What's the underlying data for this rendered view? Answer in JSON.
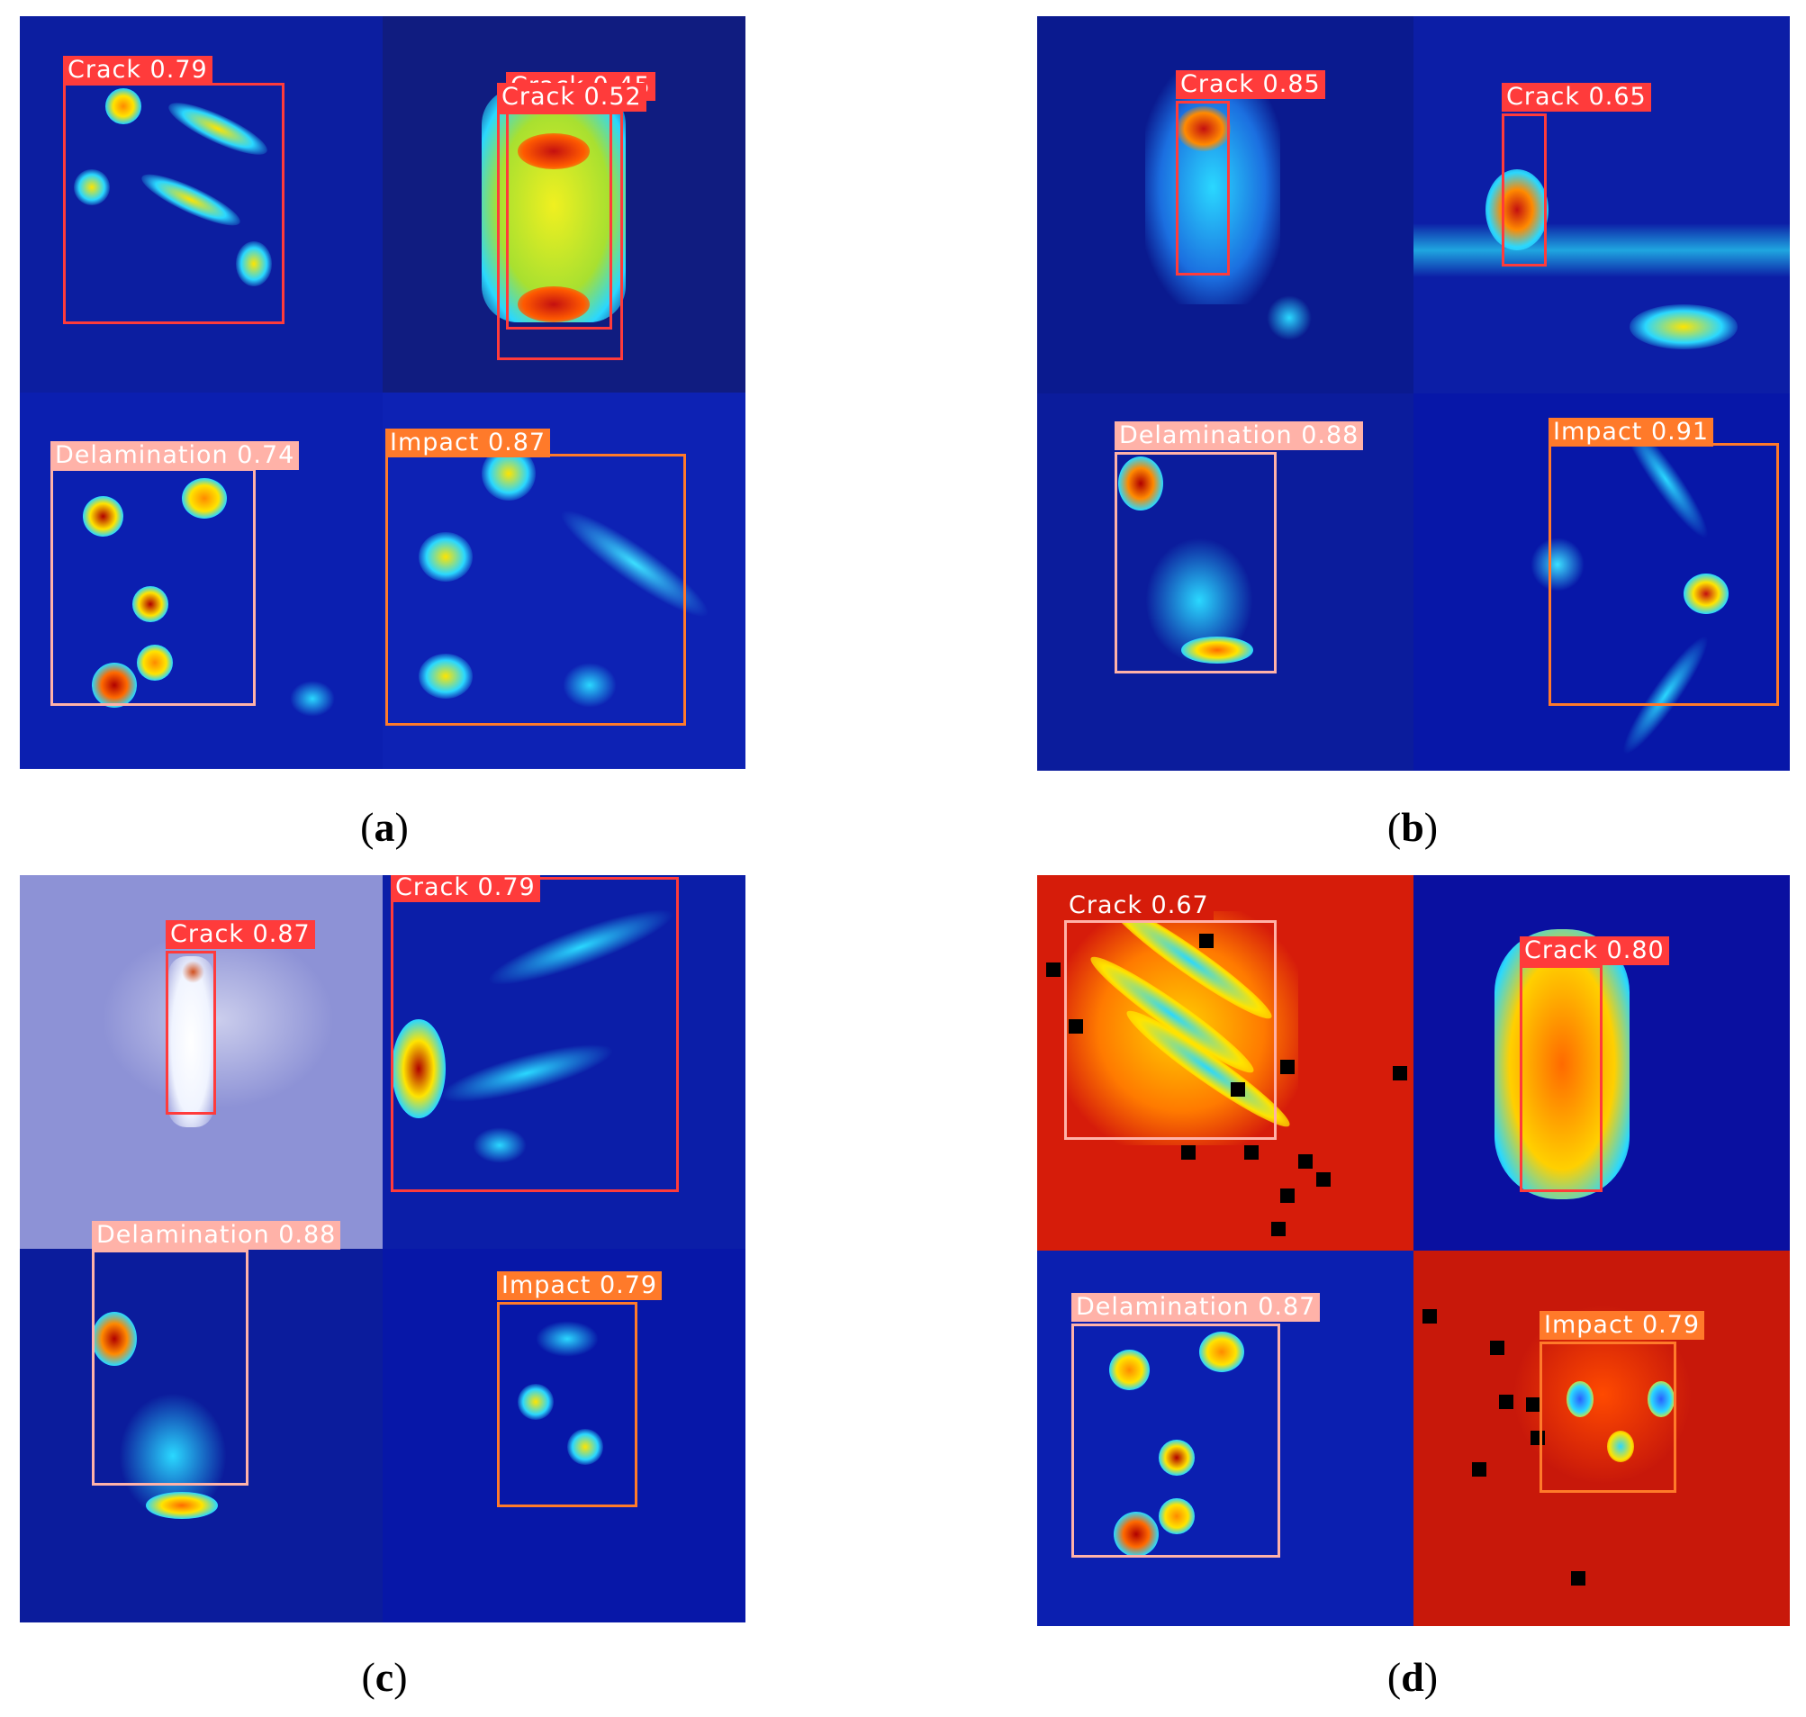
{
  "captions": {
    "a": "a",
    "b": "b",
    "c": "c",
    "d": "d"
  },
  "panels": {
    "a": {
      "detections": [
        {
          "label": "Crack 0.79",
          "class": "Crack"
        },
        {
          "label": "Crack 0.45",
          "class": "Crack"
        },
        {
          "label": "Crack 0.52",
          "class": "Crack"
        },
        {
          "label": "Delamination 0.74",
          "class": "Delamination"
        },
        {
          "label": "Impact 0.87",
          "class": "Impact"
        }
      ]
    },
    "b": {
      "detections": [
        {
          "label": "Crack 0.85",
          "class": "Crack"
        },
        {
          "label": "Crack 0.65",
          "class": "Crack"
        },
        {
          "label": "Delamination 0.88",
          "class": "Delamination"
        },
        {
          "label": "Impact 0.91",
          "class": "Impact"
        }
      ]
    },
    "c": {
      "detections": [
        {
          "label": "Crack 0.87",
          "class": "Crack"
        },
        {
          "label": "Crack 0.79",
          "class": "Crack"
        },
        {
          "label": "Delamination 0.88",
          "class": "Delamination"
        },
        {
          "label": "Impact 0.79",
          "class": "Impact"
        }
      ]
    },
    "d": {
      "detections": [
        {
          "label": "Crack 0.67",
          "class": "Crack"
        },
        {
          "label": "Crack 0.80",
          "class": "Crack"
        },
        {
          "label": "Delamination 0.87",
          "class": "Delamination"
        },
        {
          "label": "Impact 0.79",
          "class": "Impact"
        }
      ]
    }
  },
  "colors": {
    "Crack": "#ff3b3b",
    "Delamination": "#ffb2a8",
    "Impact": "#ff7a2a",
    "background_blue": "#0a1f9e",
    "background_red": "#d61c0a",
    "faded_blue": "#8d92d6"
  }
}
